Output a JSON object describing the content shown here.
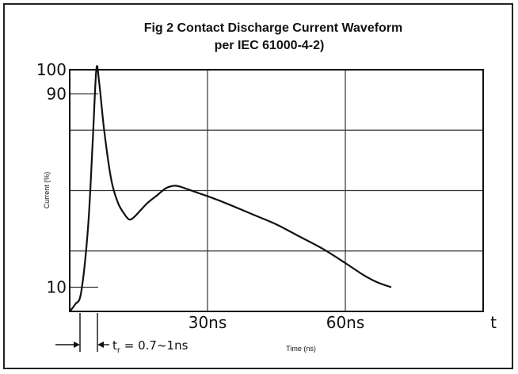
{
  "chart_data": {
    "type": "line",
    "title": "Fig 2 Contact Discharge Current Waveform",
    "subtitle": "per IEC 61000-4-2)",
    "xlabel": "Time (ns)",
    "ylabel": "Current (%)",
    "x_axis_end_label": "t",
    "xlim": [
      0,
      90
    ],
    "ylim": [
      0,
      100
    ],
    "x_ticks": [
      {
        "value": 30,
        "label": "30ns"
      },
      {
        "value": 60,
        "label": "60ns"
      }
    ],
    "y_ticks": [
      {
        "value": 100,
        "label": "100"
      },
      {
        "value": 90,
        "label": "90"
      },
      {
        "value": 10,
        "label": "10"
      }
    ],
    "grid": true,
    "annotation": {
      "prefix": "t",
      "subscript": "r",
      "text": " = 0.7~1ns"
    },
    "series": [
      {
        "x": [
          0,
          1.2,
          2.5,
          4,
          5,
          5.8,
          6.4,
          7.5,
          9,
          10.5,
          12,
          13,
          14,
          15.5,
          17,
          19,
          21,
          23,
          25,
          28,
          31,
          35,
          40,
          45,
          50,
          55,
          60,
          64,
          67,
          70
        ],
        "y": [
          0,
          3,
          8,
          35,
          70,
          100,
          95,
          75,
          55,
          45,
          40,
          38,
          39,
          42,
          45,
          48,
          51,
          52,
          51,
          49,
          47,
          44,
          40,
          36,
          31,
          26,
          20,
          15,
          12,
          10
        ]
      }
    ]
  }
}
